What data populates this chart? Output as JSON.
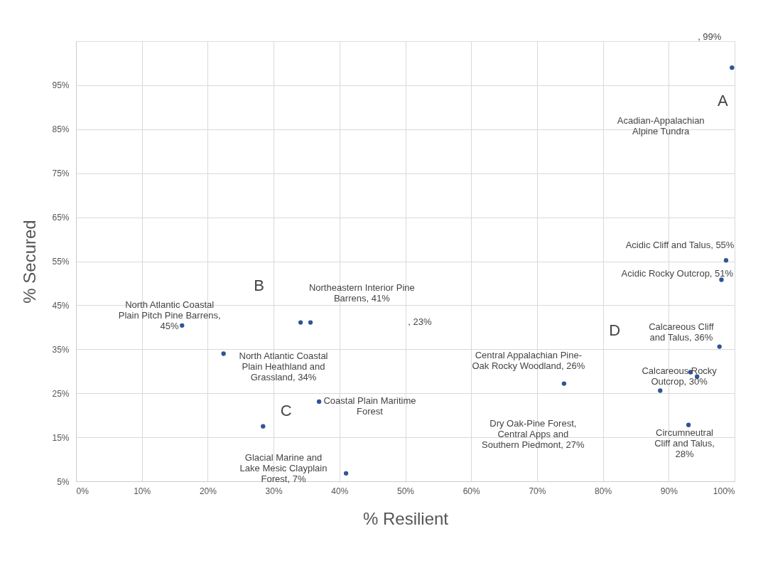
{
  "chart_data": {
    "type": "scatter",
    "xlabel": "% Resilient",
    "ylabel": "% Secured",
    "x": [
      99.6,
      98.7,
      98,
      97.7,
      93.3,
      94.3,
      88.7,
      93,
      74.1,
      16.1,
      34.1,
      35.6,
      22.4,
      36.9,
      28.4,
      41
    ],
    "values": [
      99,
      55.2,
      50.8,
      35.6,
      29.8,
      28.8,
      25.6,
      17.8,
      27.2,
      40.4,
      41.1,
      41.1,
      34,
      23.1,
      17.5,
      6.8
    ],
    "color": "#2f5597",
    "marker": "circle",
    "grid": true,
    "xlim": [
      0,
      100
    ],
    "ylim": [
      5,
      105
    ],
    "xticks": [
      {
        "value": 0,
        "label": "0%"
      },
      {
        "value": 10,
        "label": "10%"
      },
      {
        "value": 20,
        "label": "20%"
      },
      {
        "value": 30,
        "label": "30%"
      },
      {
        "value": 40,
        "label": "40%"
      },
      {
        "value": 50,
        "label": "50%"
      },
      {
        "value": 60,
        "label": "60%"
      },
      {
        "value": 70,
        "label": "70%"
      },
      {
        "value": 80,
        "label": "80%"
      },
      {
        "value": 90,
        "label": "90%"
      },
      {
        "value": 100,
        "label": "100%"
      }
    ],
    "yticks": [
      {
        "value": 5,
        "label": "5%"
      },
      {
        "value": 15,
        "label": "15%"
      },
      {
        "value": 25,
        "label": "25%"
      },
      {
        "value": 35,
        "label": "35%"
      },
      {
        "value": 45,
        "label": "45%"
      },
      {
        "value": 55,
        "label": "55%"
      },
      {
        "value": 65,
        "label": "65%"
      },
      {
        "value": 75,
        "label": "75%"
      },
      {
        "value": 85,
        "label": "85%"
      },
      {
        "value": 95,
        "label": "95%"
      }
    ],
    "annotations": [
      ", 99%",
      "A",
      "Acadian-Appalachian\nAlpine Tundra",
      "Acidic Cliff and Talus, 55%",
      "Acidic Rocky Outcrop, 51%",
      "Calcareous Cliff\nand Talus, 36%",
      "D",
      "Calcareous Rocky\nOutcrop, 30%",
      "Circumneutral\nCliff and Talus,\n28%",
      "Central Appalachian Pine-\nOak Rocky Woodland, 26%",
      "Dry Oak-Pine Forest,\nCentral Apps and\nSouthern Piedmont, 27%",
      ", 23%",
      "Northeastern Interior Pine\nBarrens, 41%",
      "B",
      "North Atlantic Coastal\nPlain Pitch Pine Barrens,\n45%",
      "North Atlantic Coastal\nPlain Heathland and\nGrassland, 34%",
      "Coastal Plain Maritime\nForest",
      "C",
      "Glacial Marine and\nLake Mesic Clayplain\nForest, 7%"
    ]
  }
}
